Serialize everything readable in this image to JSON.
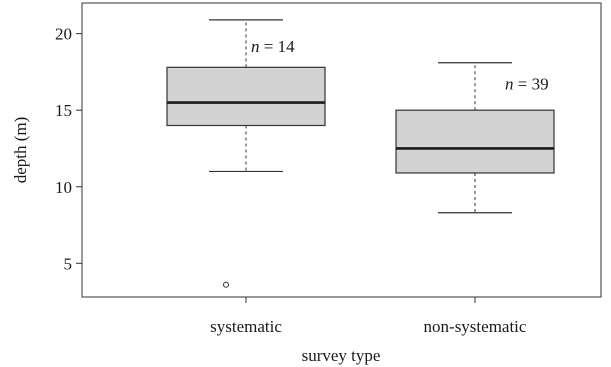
{
  "chart_data": {
    "type": "box",
    "xlabel": "survey type",
    "ylabel": "depth (m)",
    "ylim": [
      2.8,
      22.0
    ],
    "yticks": [
      "5",
      "10",
      "15",
      "20"
    ],
    "categories": [
      "systematic",
      "non-systematic"
    ],
    "boxes": [
      {
        "category": "systematic",
        "whisker_low": 11.0,
        "q1": 14.0,
        "median": 15.5,
        "q3": 17.8,
        "whisker_high": 20.9,
        "outliers": [
          3.6
        ],
        "n_label": "n = 14"
      },
      {
        "category": "non-systematic",
        "whisker_low": 8.3,
        "q1": 10.9,
        "median": 12.5,
        "q3": 15.0,
        "whisker_high": 18.1,
        "outliers": [],
        "n_label": "n = 39"
      }
    ],
    "colors": {
      "box_fill": "#d3d3d3",
      "line": "#333333",
      "median": "#1a1a1a"
    }
  }
}
